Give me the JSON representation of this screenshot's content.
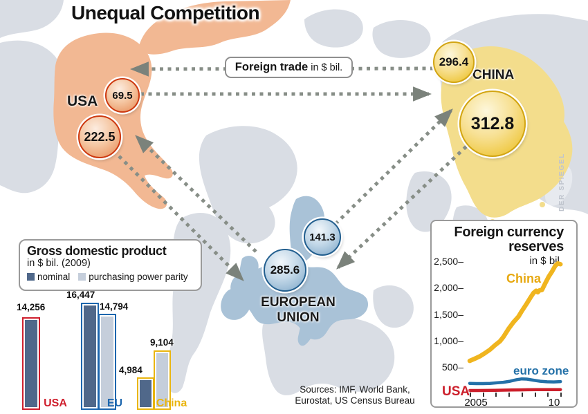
{
  "title": "Unequal Competition",
  "watermark": "DER SPIEGEL",
  "foreign_trade_label": {
    "bold": "Foreign trade",
    "unit": " in $ bil."
  },
  "regions": {
    "usa": "USA",
    "china": "CHINA",
    "eu_line1": "EUROPEAN",
    "eu_line2": "UNION"
  },
  "trade_flows": {
    "usa_to_china": "69.5",
    "usa_to_eu": "222.5",
    "china_to_usa": "296.4",
    "china_to_eu": "312.8",
    "eu_to_china": "141.3",
    "eu_to_usa": "285.6"
  },
  "sources": {
    "line1": "Sources: IMF, World Bank,",
    "line2": "Eurostat, US Census Bureau"
  },
  "colors": {
    "map_land": "#d9dde4",
    "map_land_light": "#e7eaef",
    "map_usa": "#f2b893",
    "map_china": "#f3dd8c",
    "map_eu": "#a9c2d7",
    "arrow": "#878e87",
    "usa_accent": "#cf1f2d",
    "eu_accent": "#1c66ae",
    "china_accent": "#e9b50f"
  },
  "chart_data": [
    {
      "type": "bar",
      "title": "Gross domestic product",
      "subtitle": "in $ bil. (2009)",
      "legend": [
        {
          "label": "nominal",
          "color": "#50688a"
        },
        {
          "label": "purchasing power parity",
          "color": "#c5cedb"
        }
      ],
      "ymax": 16447,
      "groups": [
        {
          "label": "USA",
          "accent": "#cf1f2d",
          "bars": [
            {
              "series": "nominal",
              "value": 14256,
              "display": "14,256"
            }
          ]
        },
        {
          "label": "EU",
          "accent": "#1c66ae",
          "bars": [
            {
              "series": "nominal",
              "value": 16447,
              "display": "16,447"
            },
            {
              "series": "ppp",
              "value": 14794,
              "display": "14,794"
            }
          ]
        },
        {
          "label": "China",
          "accent": "#e9b50f",
          "bars": [
            {
              "series": "nominal",
              "value": 4984,
              "display": "4,984"
            },
            {
              "series": "ppp",
              "value": 9104,
              "display": "9,104"
            }
          ]
        }
      ]
    },
    {
      "type": "line",
      "title": "Foreign currency reserves",
      "subtitle": "in $ bil.",
      "ylim": [
        0,
        2700
      ],
      "xlim": [
        2005,
        2010.4
      ],
      "yticks": [
        {
          "value": 2500,
          "label": "2,500–"
        },
        {
          "value": 2000,
          "label": "2,000–"
        },
        {
          "value": 1500,
          "label": "1,500–"
        },
        {
          "value": 1000,
          "label": "1,000–"
        },
        {
          "value": 500,
          "label": "500–"
        }
      ],
      "xticks": {
        "first_label": "2005",
        "last_label": "10",
        "tick_count": 8
      },
      "series": [
        {
          "name": "China",
          "color": "#f0b51f",
          "width": 6.5,
          "x": [
            2005,
            2005.3,
            2005.6,
            2005.9,
            2006.2,
            2006.5,
            2006.8,
            2007,
            2007.3,
            2007.6,
            2007.9,
            2008.1,
            2008.4,
            2008.6,
            2008.8,
            2008.95,
            2009.05,
            2009.15,
            2009.3,
            2009.5,
            2009.7,
            2009.9,
            2010.1,
            2010.25,
            2010.4
          ],
          "y": [
            620,
            660,
            705,
            765,
            830,
            915,
            990,
            1070,
            1220,
            1350,
            1455,
            1560,
            1705,
            1810,
            1905,
            1945,
            1915,
            1950,
            1960,
            2090,
            2210,
            2310,
            2420,
            2460,
            2445
          ]
        },
        {
          "name": "euro zone",
          "color": "#2471a8",
          "width": 4.5,
          "x": [
            2005,
            2005.4,
            2005.8,
            2006.2,
            2006.6,
            2007,
            2007.4,
            2007.8,
            2008.1,
            2008.4,
            2008.8,
            2009.2,
            2009.6,
            2010,
            2010.4
          ],
          "y": [
            195,
            190,
            190,
            195,
            205,
            215,
            235,
            265,
            280,
            275,
            255,
            235,
            225,
            222,
            228
          ]
        },
        {
          "name": "USA",
          "color": "#cc1f2b",
          "width": 4.5,
          "x": [
            2005,
            2005.5,
            2006,
            2006.5,
            2007,
            2007.5,
            2008,
            2008.5,
            2009,
            2009.5,
            2010,
            2010.4
          ],
          "y": [
            60,
            60,
            62,
            64,
            66,
            70,
            72,
            74,
            76,
            76,
            76,
            77
          ]
        }
      ]
    }
  ]
}
